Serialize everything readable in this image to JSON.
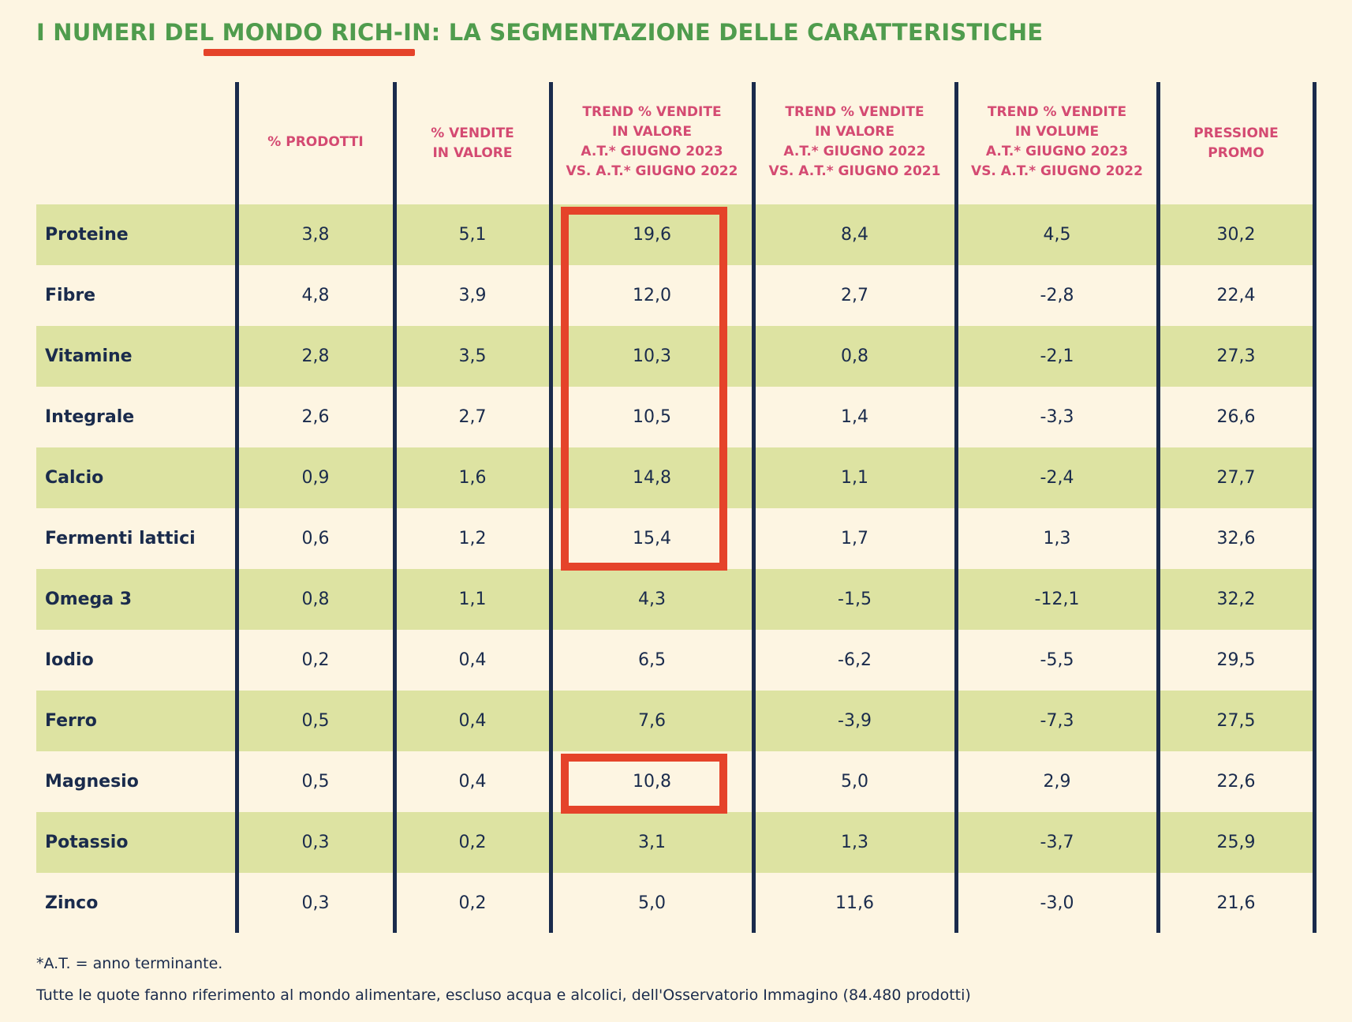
{
  "title": "I NUMERI DEL MONDO RICH-IN: LA SEGMENTAZIONE DELLE CARATTERISTICHE",
  "colors": {
    "title": "#4f9c4d",
    "underline": "#e5432a",
    "header_text": "#d44a72",
    "band": "#dde3a2",
    "text": "#1a2b4c",
    "background": "#fdf5e2",
    "highlight": "#e5432a"
  },
  "chart_data": {
    "type": "table",
    "title": "I NUMERI DEL MONDO RICH-IN: LA SEGMENTAZIONE DELLE CARATTERISTICHE",
    "columns": [
      "% PRODOTTI",
      "% VENDITE\nIN VALORE",
      "TREND % VENDITE\nIN VALORE\nA.T.* GIUGNO 2023\nVS. A.T.* GIUGNO 2022",
      "TREND % VENDITE\nIN VALORE\nA.T.* GIUGNO 2022\nVS. A.T.* GIUGNO 2021",
      "TREND % VENDITE\nIN VOLUME\nA.T.* GIUGNO 2023\nVS. A.T.* GIUGNO 2022",
      "PRESSIONE\nPROMO"
    ],
    "rows": [
      {
        "label": "Proteine",
        "values": [
          "3,8",
          "5,1",
          "19,6",
          "8,4",
          "4,5",
          "30,2"
        ]
      },
      {
        "label": "Fibre",
        "values": [
          "4,8",
          "3,9",
          "12,0",
          "2,7",
          "-2,8",
          "22,4"
        ]
      },
      {
        "label": "Vitamine",
        "values": [
          "2,8",
          "3,5",
          "10,3",
          "0,8",
          "-2,1",
          "27,3"
        ]
      },
      {
        "label": "Integrale",
        "values": [
          "2,6",
          "2,7",
          "10,5",
          "1,4",
          "-3,3",
          "26,6"
        ]
      },
      {
        "label": "Calcio",
        "values": [
          "0,9",
          "1,6",
          "14,8",
          "1,1",
          "-2,4",
          "27,7"
        ]
      },
      {
        "label": "Fermenti lattici",
        "values": [
          "0,6",
          "1,2",
          "15,4",
          "1,7",
          "1,3",
          "32,6"
        ]
      },
      {
        "label": "Omega 3",
        "values": [
          "0,8",
          "1,1",
          "4,3",
          "-1,5",
          "-12,1",
          "32,2"
        ]
      },
      {
        "label": "Iodio",
        "values": [
          "0,2",
          "0,4",
          "6,5",
          "-6,2",
          "-5,5",
          "29,5"
        ]
      },
      {
        "label": "Ferro",
        "values": [
          "0,5",
          "0,4",
          "7,6",
          "-3,9",
          "-7,3",
          "27,5"
        ]
      },
      {
        "label": "Magnesio",
        "values": [
          "0,5",
          "0,4",
          "10,8",
          "5,0",
          "2,9",
          "22,6"
        ]
      },
      {
        "label": "Potassio",
        "values": [
          "0,3",
          "0,2",
          "3,1",
          "1,3",
          "-3,7",
          "25,9"
        ]
      },
      {
        "label": "Zinco",
        "values": [
          "0,3",
          "0,2",
          "5,0",
          "11,6",
          "-3,0",
          "21,6"
        ]
      }
    ],
    "highlights": [
      {
        "column": 2,
        "row_start": 0,
        "row_end": 5
      },
      {
        "column": 2,
        "row_start": 9,
        "row_end": 9
      }
    ]
  },
  "footnotes": [
    "*A.T. = anno terminante.",
    "Tutte le quote fanno riferimento al mondo alimentare, escluso acqua e alcolici, dell'Osservatorio Immagino (84.480 prodotti)"
  ]
}
